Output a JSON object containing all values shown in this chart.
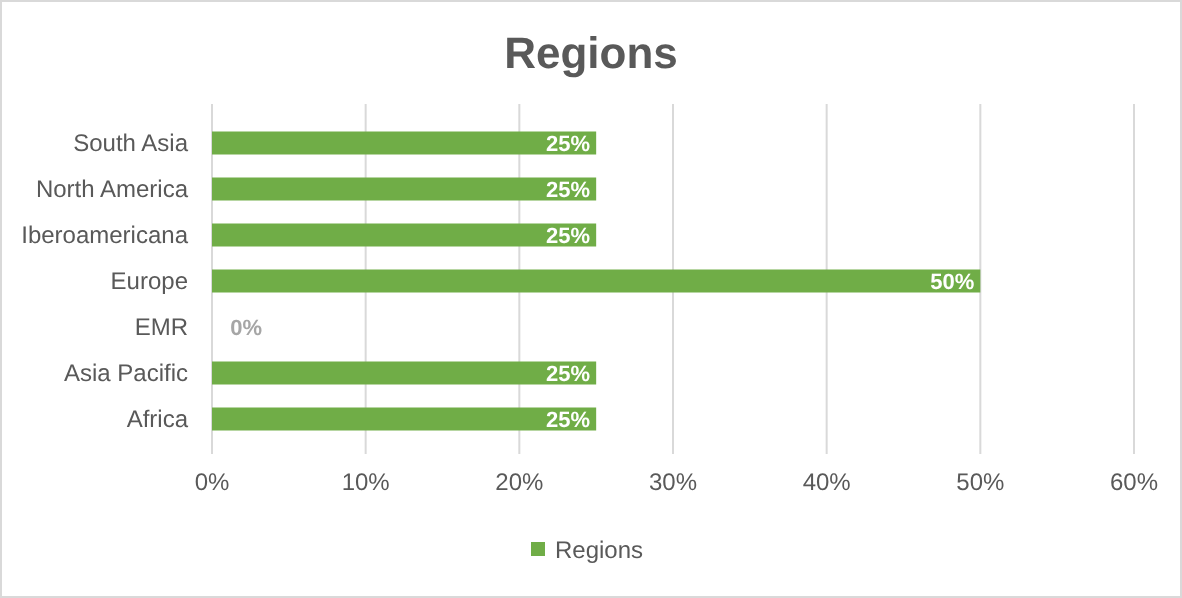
{
  "chart_data": {
    "type": "bar",
    "orientation": "horizontal",
    "title": "Regions",
    "categories": [
      "South Asia",
      "North America",
      "Iberoamericana",
      "Europe",
      "EMR",
      "Asia Pacific",
      "Africa"
    ],
    "series": [
      {
        "name": "Regions",
        "color": "#70ad47",
        "values": [
          25,
          25,
          25,
          50,
          0,
          25,
          25
        ],
        "value_labels": [
          "25%",
          "25%",
          "25%",
          "50%",
          "0%",
          "25%",
          "25%"
        ]
      }
    ],
    "xlim": [
      0,
      60
    ],
    "xticks": [
      {
        "value": 0,
        "label": "0%"
      },
      {
        "value": 10,
        "label": "10%"
      },
      {
        "value": 20,
        "label": "20%"
      },
      {
        "value": 30,
        "label": "30%"
      },
      {
        "value": 40,
        "label": "40%"
      },
      {
        "value": 50,
        "label": "50%"
      },
      {
        "value": 60,
        "label": "60%"
      }
    ],
    "grid": "x",
    "legend": "bottom"
  }
}
